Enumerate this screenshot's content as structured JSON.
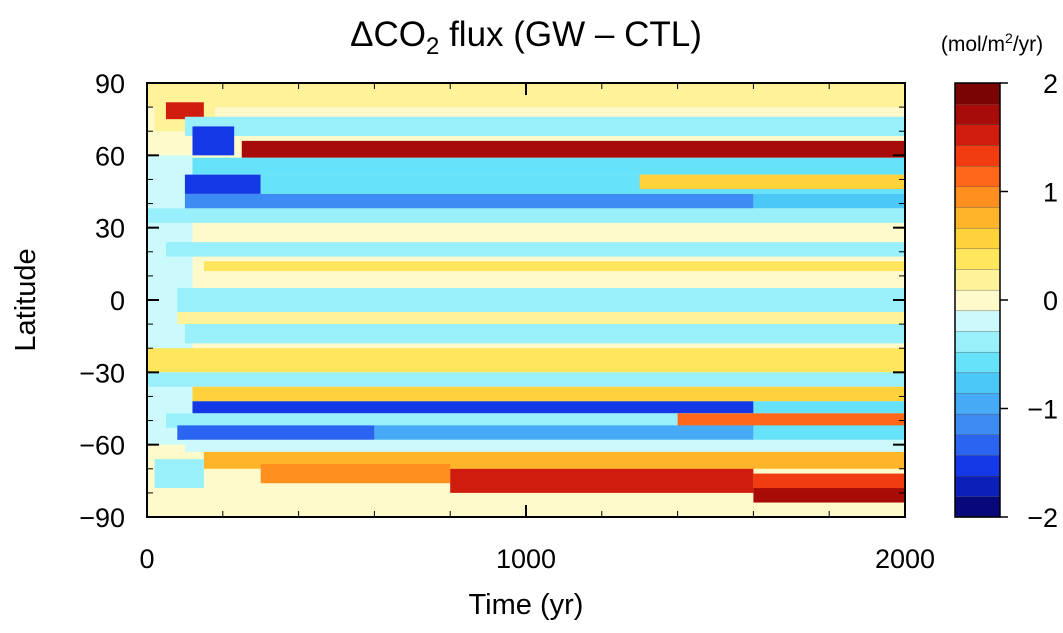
{
  "chart_data": {
    "type": "heatmap",
    "title": "ΔCO2 flux (GW – CTL)",
    "title_parts": {
      "prefix": "ΔCO",
      "subscript": "2",
      "suffix": " flux (GW – CTL)"
    },
    "xlabel": "Time (yr)",
    "ylabel": "Latitude",
    "xlim": [
      0,
      2000
    ],
    "ylim": [
      -90,
      90
    ],
    "x_ticks": [
      {
        "value": 0,
        "label": "0"
      },
      {
        "value": 1000,
        "label": "1000"
      },
      {
        "value": 2000,
        "label": "2000"
      }
    ],
    "y_ticks": [
      {
        "value": 90,
        "label": "90"
      },
      {
        "value": 60,
        "label": "60"
      },
      {
        "value": 30,
        "label": "30"
      },
      {
        "value": 0,
        "label": "0"
      },
      {
        "value": -30,
        "label": "−30"
      },
      {
        "value": -60,
        "label": "−60"
      },
      {
        "value": -90,
        "label": "−90"
      }
    ],
    "colorbar": {
      "units_label": "(mol/m2/yr)",
      "units_parts": {
        "prefix": "(mol/m",
        "superscript": "2",
        "suffix": "/yr)"
      },
      "range": [
        -2,
        2
      ],
      "ticks": [
        {
          "value": 2,
          "label": "2"
        },
        {
          "value": 1,
          "label": "1"
        },
        {
          "value": 0,
          "label": "0"
        },
        {
          "value": -1,
          "label": "−1"
        },
        {
          "value": -2,
          "label": "−2"
        }
      ],
      "levels_from_low": [
        "#08087a",
        "#0c1fb8",
        "#1538e6",
        "#2a64f0",
        "#3d8cf4",
        "#46aaf6",
        "#4cc8f8",
        "#66e2fa",
        "#99f0fb",
        "#ccfafc",
        "#fffacc",
        "#fff299",
        "#ffe65c",
        "#ffd23c",
        "#ffb42a",
        "#ff9020",
        "#ff6818",
        "#f03c10",
        "#d01c0c",
        "#a80c08",
        "#7a0404"
      ]
    },
    "bands": [
      {
        "lat": [
          80,
          90
        ],
        "t": [
          0,
          2000
        ],
        "v": 0.2
      },
      {
        "lat": [
          70,
          80
        ],
        "t": [
          20,
          180
        ],
        "v": 0.25
      },
      {
        "lat": [
          75,
          82
        ],
        "t": [
          50,
          150
        ],
        "v": 1.6
      },
      {
        "lat": [
          68,
          76
        ],
        "t": [
          100,
          2000
        ],
        "v": -0.45
      },
      {
        "lat": [
          60,
          72
        ],
        "t": [
          120,
          230
        ],
        "v": -1.6
      },
      {
        "lat": [
          59,
          66
        ],
        "t": [
          250,
          2000
        ],
        "v": 1.7
      },
      {
        "lat": [
          52,
          59
        ],
        "t": [
          120,
          2000
        ],
        "v": -0.55
      },
      {
        "lat": [
          44,
          52
        ],
        "t": [
          100,
          300
        ],
        "v": -1.5
      },
      {
        "lat": [
          44,
          52
        ],
        "t": [
          300,
          2000
        ],
        "v": -0.5
      },
      {
        "lat": [
          46,
          52
        ],
        "t": [
          1300,
          2000
        ],
        "v": 0.5
      },
      {
        "lat": [
          38,
          44
        ],
        "t": [
          100,
          1600
        ],
        "v": -1.2
      },
      {
        "lat": [
          38,
          44
        ],
        "t": [
          1600,
          2000
        ],
        "v": -0.8
      },
      {
        "lat": [
          32,
          38
        ],
        "t": [
          0,
          2000
        ],
        "v": -0.3
      },
      {
        "lat": [
          18,
          24
        ],
        "t": [
          50,
          2000
        ],
        "v": -0.45
      },
      {
        "lat": [
          12,
          16
        ],
        "t": [
          150,
          2000
        ],
        "v": 0.3
      },
      {
        "lat": [
          -5,
          5
        ],
        "t": [
          80,
          2000
        ],
        "v": -0.4
      },
      {
        "lat": [
          -10,
          -5
        ],
        "t": [
          80,
          2000
        ],
        "v": 0.2
      },
      {
        "lat": [
          -18,
          -10
        ],
        "t": [
          100,
          2000
        ],
        "v": -0.3
      },
      {
        "lat": [
          -30,
          -20
        ],
        "t": [
          0,
          2000
        ],
        "v": 0.3
      },
      {
        "lat": [
          -36,
          -30
        ],
        "t": [
          0,
          2000
        ],
        "v": -0.3
      },
      {
        "lat": [
          -42,
          -36
        ],
        "t": [
          120,
          2000
        ],
        "v": 0.5
      },
      {
        "lat": [
          -47,
          -42
        ],
        "t": [
          120,
          1600
        ],
        "v": -1.6
      },
      {
        "lat": [
          -47,
          -42
        ],
        "t": [
          1600,
          2000
        ],
        "v": -0.5
      },
      {
        "lat": [
          -53,
          -47
        ],
        "t": [
          50,
          1600
        ],
        "v": -0.4
      },
      {
        "lat": [
          -53,
          -47
        ],
        "t": [
          1400,
          2000
        ],
        "v": 1.2
      },
      {
        "lat": [
          -58,
          -52
        ],
        "t": [
          80,
          600
        ],
        "v": -1.4
      },
      {
        "lat": [
          -58,
          -52
        ],
        "t": [
          600,
          1600
        ],
        "v": -0.9
      },
      {
        "lat": [
          -58,
          -52
        ],
        "t": [
          1600,
          2000
        ],
        "v": -0.5
      },
      {
        "lat": [
          -63,
          -58
        ],
        "t": [
          100,
          2000
        ],
        "v": -0.2
      },
      {
        "lat": [
          -70,
          -63
        ],
        "t": [
          150,
          2000
        ],
        "v": 0.7
      },
      {
        "lat": [
          -76,
          -68
        ],
        "t": [
          300,
          800
        ],
        "v": 0.9
      },
      {
        "lat": [
          -80,
          -70
        ],
        "t": [
          800,
          1600
        ],
        "v": 1.6
      },
      {
        "lat": [
          -80,
          -72
        ],
        "t": [
          1600,
          2000
        ],
        "v": 1.3
      },
      {
        "lat": [
          -84,
          -78
        ],
        "t": [
          1600,
          2000
        ],
        "v": 1.7
      },
      {
        "lat": [
          -78,
          -66
        ],
        "t": [
          20,
          150
        ],
        "v": -0.4
      }
    ]
  }
}
